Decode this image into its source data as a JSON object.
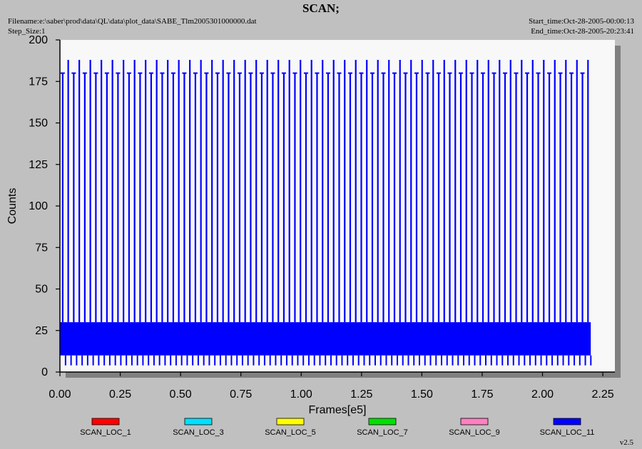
{
  "header": {
    "title": "SCAN;",
    "filename": "Filename:e:\\saber\\prod\\data\\QL\\data\\plot_data\\SABE_Tlm2005301000000.dat",
    "step_size": "Step_Size:1",
    "start_time": "Start_time:Oct-28-2005-00:00:13",
    "end_time": "End_time:Oct-28-2005-20:23:41"
  },
  "version": "v2.5",
  "chart_data": {
    "type": "line",
    "title": "SCAN;",
    "xlabel": "Frames[e5]",
    "ylabel": "Counts",
    "xlim": [
      0,
      2.3
    ],
    "ylim": [
      0,
      200
    ],
    "xticks": [
      "0.00",
      "0.25",
      "0.50",
      "0.75",
      "1.00",
      "1.25",
      "1.50",
      "1.75",
      "2.00",
      "2.25"
    ],
    "yticks": [
      "0",
      "25",
      "50",
      "75",
      "100",
      "125",
      "150",
      "175",
      "200"
    ],
    "grid": false,
    "legend_position": "bottom",
    "x_extent": [
      0.0,
      2.2
    ],
    "baseline_band": [
      10,
      30
    ],
    "scan_peaks": [
      180,
      188
    ],
    "series": [
      {
        "name": "SCAN_LOC_1",
        "color": "#ff0000"
      },
      {
        "name": "SCAN_LOC_3",
        "color": "#00e0ff"
      },
      {
        "name": "SCAN_LOC_5",
        "color": "#ffff00"
      },
      {
        "name": "SCAN_LOC_7",
        "color": "#00e000"
      },
      {
        "name": "SCAN_LOC_9",
        "color": "#ff80c0"
      },
      {
        "name": "SCAN_LOC_11",
        "color": "#0000ff"
      }
    ]
  }
}
